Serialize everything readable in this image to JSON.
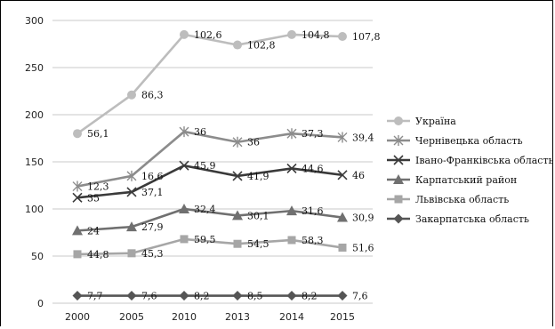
{
  "chart_data": {
    "type": "line",
    "categories": [
      "2000",
      "2005",
      "2010",
      "2013",
      "2014",
      "2015"
    ],
    "ylim": [
      0,
      300
    ],
    "yticks": [
      0,
      50,
      100,
      150,
      200,
      250,
      300
    ],
    "grid": true,
    "legend_position": "right",
    "series": [
      {
        "name": "Україна",
        "color": "#bdbdbd",
        "marker": "circle",
        "values": [
          180,
          221,
          285,
          274,
          285,
          283
        ],
        "labels": [
          "56,1",
          "86,3",
          "102,6",
          "102,8",
          "104,8",
          "107,8"
        ]
      },
      {
        "name": "Чернівецька область",
        "color": "#8c8c8c",
        "marker": "asterisk",
        "values": [
          124,
          135,
          182,
          171,
          180,
          176
        ],
        "labels": [
          "12,3",
          "16,6",
          "36",
          "36",
          "37,3",
          "39,4"
        ]
      },
      {
        "name": "Івано-Франківська область",
        "color": "#3a3a3a",
        "marker": "x",
        "values": [
          112,
          118,
          146,
          135,
          143,
          136
        ],
        "labels": [
          "35",
          "37,1",
          "45,9",
          "41,9",
          "44,6",
          "46"
        ]
      },
      {
        "name": "Карпатський район",
        "color": "#707070",
        "marker": "triangle",
        "values": [
          77,
          81,
          100,
          93,
          98,
          91
        ],
        "labels": [
          "24",
          "27,9",
          "32,4",
          "30,1",
          "31,6",
          "30,9"
        ]
      },
      {
        "name": "Львівська область",
        "color": "#a6a6a6",
        "marker": "square",
        "values": [
          52,
          53,
          68,
          63,
          67,
          59
        ],
        "labels": [
          "44,8",
          "45,3",
          "59,5",
          "54,5",
          "58,3",
          "51,6"
        ]
      },
      {
        "name": "Закарпатська область",
        "color": "#555555",
        "marker": "diamond",
        "values": [
          8,
          8,
          8,
          8,
          8,
          8
        ],
        "labels": [
          "7,7",
          "7,6",
          "8,2",
          "8,5",
          "8,2",
          "7,6"
        ]
      }
    ]
  }
}
